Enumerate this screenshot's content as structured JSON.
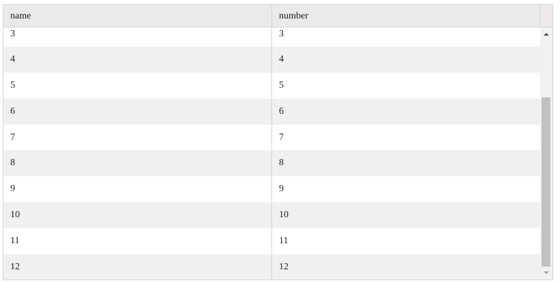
{
  "columns": [
    "name",
    "number"
  ],
  "rows": [
    {
      "name": "3",
      "number": "3"
    },
    {
      "name": "4",
      "number": "4"
    },
    {
      "name": "5",
      "number": "5"
    },
    {
      "name": "6",
      "number": "6"
    },
    {
      "name": "7",
      "number": "7"
    },
    {
      "name": "8",
      "number": "8"
    },
    {
      "name": "9",
      "number": "9"
    },
    {
      "name": "10",
      "number": "10"
    },
    {
      "name": "11",
      "number": "11"
    },
    {
      "name": "12",
      "number": "12"
    }
  ],
  "colors": {
    "header_bg": "#ebe9e9",
    "alt_row_bg": "#f0f0f0",
    "scroll_thumb": "#c1c1c1"
  }
}
